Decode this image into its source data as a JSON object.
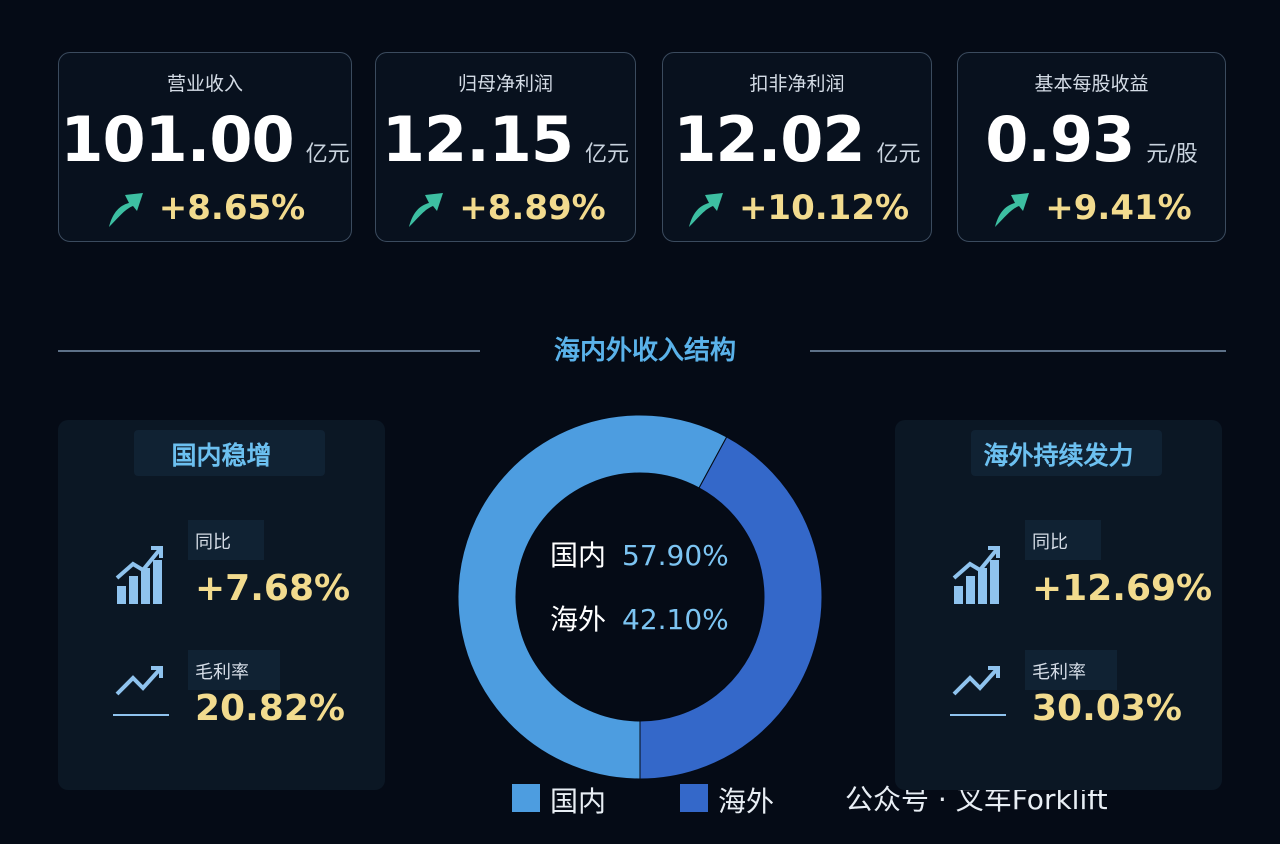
{
  "kpis": [
    {
      "label": "营业收入",
      "value": "101.00",
      "unit": "亿元",
      "change": "+8.65%"
    },
    {
      "label": "归母净利润",
      "value": "12.15",
      "unit": "亿元",
      "change": "+8.89%"
    },
    {
      "label": "扣非净利润",
      "value": "12.02",
      "unit": "亿元",
      "change": "+10.12%"
    },
    {
      "label": "基本每股收益",
      "value": "0.93",
      "unit": "元/股",
      "change": "+9.41%"
    }
  ],
  "section_title": "海内外收入结构",
  "panels": [
    {
      "title": "国内稳增",
      "yoy_label": "同比",
      "yoy": "+7.68%",
      "margin_label": "毛利率",
      "margin": "20.82%"
    },
    {
      "title": "海外持续发力",
      "yoy_label": "同比",
      "yoy": "+12.69%",
      "margin_label": "毛利率",
      "margin": "30.03%"
    }
  ],
  "chart_data": {
    "type": "donut",
    "categories": [
      "国内",
      "海外"
    ],
    "values": [
      57.9,
      42.1
    ],
    "value_labels": [
      "57.90%",
      "42.10%"
    ],
    "colors": [
      "#4d9de0",
      "#3468c9"
    ]
  },
  "watermark": "公众号 · 叉车Forklift"
}
